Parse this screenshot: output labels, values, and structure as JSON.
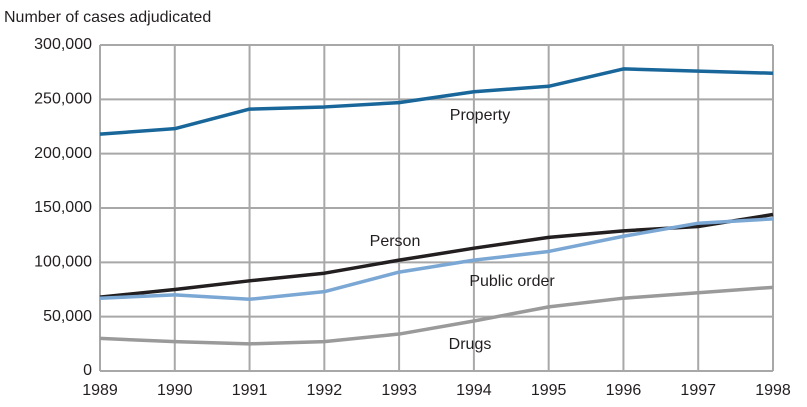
{
  "chart_data": {
    "type": "line",
    "y_axis_label": "Number of cases adjudicated",
    "x": [
      1989,
      1990,
      1991,
      1992,
      1993,
      1994,
      1995,
      1996,
      1997,
      1998
    ],
    "xlim": [
      1989,
      1998
    ],
    "xticks": [
      1989,
      1990,
      1991,
      1992,
      1993,
      1994,
      1995,
      1996,
      1997,
      1998
    ],
    "ylim": [
      0,
      300000
    ],
    "yticks": [
      0,
      {
        "value": 50000,
        "label": "50,000"
      },
      {
        "value": 100000,
        "label": "100,000"
      },
      {
        "value": 150000,
        "label": "150,000"
      },
      {
        "value": 200000,
        "label": "200,000"
      },
      {
        "value": 250000,
        "label": "250,000"
      },
      {
        "value": 300000,
        "label": "300,000"
      }
    ],
    "grid": true,
    "series": [
      {
        "name": "Property",
        "color": "#19679a",
        "values": [
          218000,
          223000,
          241000,
          243000,
          247000,
          257000,
          262000,
          278000,
          276000,
          274000
        ]
      },
      {
        "name": "Person",
        "color": "#231f20",
        "values": [
          68000,
          75000,
          83000,
          90000,
          102000,
          113000,
          123000,
          129000,
          133000,
          144000
        ]
      },
      {
        "name": "Public order",
        "color": "#7ba7d4",
        "values": [
          67000,
          70000,
          66000,
          73000,
          91000,
          102000,
          110000,
          124000,
          136000,
          140000
        ]
      },
      {
        "name": "Drugs",
        "color": "#9a9a9a",
        "values": [
          30000,
          27000,
          25000,
          27000,
          34000,
          46000,
          59000,
          67000,
          72000,
          77000
        ]
      }
    ]
  }
}
